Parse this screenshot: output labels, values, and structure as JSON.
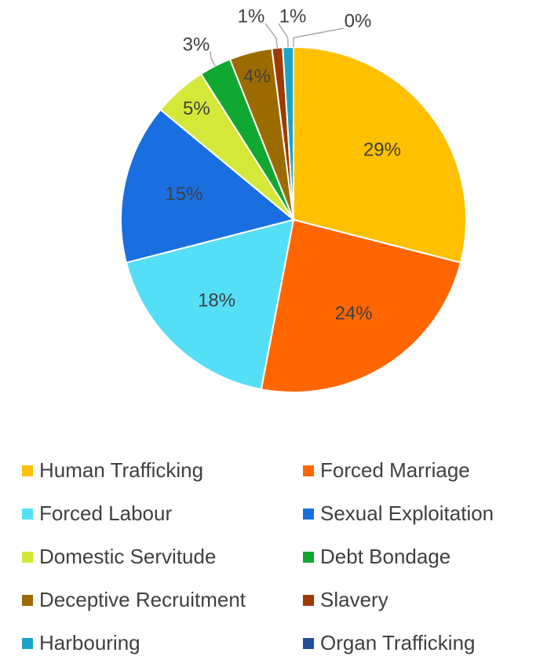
{
  "chart_data": {
    "type": "pie",
    "categories": [
      "Human Trafficking",
      "Forced Marriage",
      "Forced Labour",
      "Sexual Exploitation",
      "Domestic Servitude",
      "Debt Bondage",
      "Deceptive Recruitment",
      "Slavery",
      "Harbouring",
      "Organ Trafficking"
    ],
    "values": [
      29,
      24,
      18,
      15,
      5,
      3,
      4,
      1,
      1,
      0
    ],
    "value_labels": [
      "29%",
      "24%",
      "18%",
      "15%",
      "5%",
      "3%",
      "4%",
      "1%",
      "1%",
      "0%"
    ],
    "colors": [
      "#FFC000",
      "#FF6600",
      "#55DFF7",
      "#1A6FE0",
      "#D4E83A",
      "#10A830",
      "#9C6B00",
      "#9C3A00",
      "#1AA5C8",
      "#1F4E9C"
    ],
    "legend": "bottom"
  }
}
